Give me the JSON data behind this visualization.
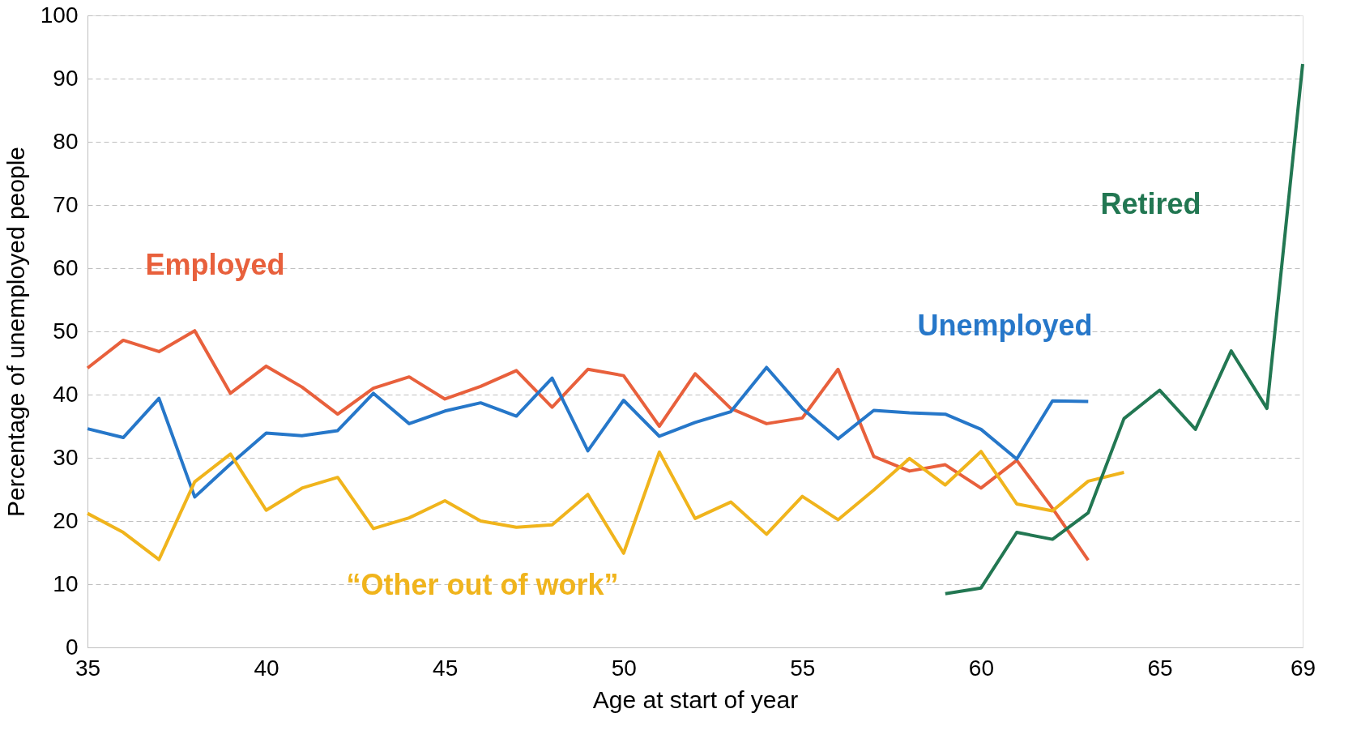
{
  "chart_data": {
    "type": "line",
    "xlabel": "Age at start of year",
    "ylabel": "Percentage of unemployed people",
    "xlim": [
      35,
      69
    ],
    "xticks": [
      35,
      40,
      45,
      50,
      55,
      60,
      65,
      69
    ],
    "ylim": [
      0,
      100
    ],
    "yticks": [
      0,
      10,
      20,
      30,
      40,
      50,
      60,
      70,
      80,
      90,
      100
    ],
    "grid": "y",
    "marker": "none",
    "line_style": "solid",
    "series": [
      {
        "name": "Employed",
        "color": "#e8603c",
        "x": [
          35,
          36,
          37,
          38,
          39,
          40,
          41,
          42,
          43,
          44,
          45,
          46,
          47,
          48,
          49,
          50,
          51,
          52,
          53,
          54,
          55,
          56,
          57,
          58,
          59,
          60,
          61,
          62,
          63
        ],
        "values": [
          44.2,
          48.6,
          46.8,
          50.1,
          40.2,
          44.5,
          41.2,
          36.9,
          41.0,
          42.8,
          39.3,
          41.3,
          43.8,
          38.0,
          44.0,
          43.0,
          35.0,
          43.3,
          37.8,
          35.4,
          36.3,
          44.0,
          30.2,
          27.9,
          28.9,
          25.2,
          29.6,
          22.0,
          13.8
        ]
      },
      {
        "name": "Unemployed",
        "color": "#2677c9",
        "x": [
          35,
          36,
          37,
          38,
          39,
          40,
          41,
          42,
          43,
          44,
          45,
          46,
          47,
          48,
          49,
          50,
          51,
          52,
          53,
          54,
          55,
          56,
          57,
          58,
          59,
          60,
          61,
          62,
          63
        ],
        "values": [
          34.6,
          33.2,
          39.4,
          23.8,
          29.0,
          33.9,
          33.5,
          34.3,
          40.2,
          35.4,
          37.4,
          38.7,
          36.6,
          42.6,
          31.1,
          39.1,
          33.4,
          35.6,
          37.3,
          44.3,
          37.8,
          33.0,
          37.5,
          37.1,
          36.9,
          34.5,
          29.8,
          39.0,
          38.9
        ]
      },
      {
        "name": "“Other out of work”",
        "color": "#f0b41c",
        "x": [
          35,
          36,
          37,
          38,
          39,
          40,
          41,
          42,
          43,
          44,
          45,
          46,
          47,
          48,
          49,
          50,
          51,
          52,
          53,
          54,
          55,
          56,
          57,
          58,
          59,
          60,
          61,
          62,
          63,
          64
        ],
        "values": [
          21.2,
          18.2,
          13.9,
          26.2,
          30.6,
          21.7,
          25.2,
          26.9,
          18.8,
          20.5,
          23.2,
          20.0,
          19.0,
          19.4,
          24.2,
          14.9,
          30.9,
          20.4,
          23.0,
          17.9,
          23.9,
          20.2,
          24.9,
          29.9,
          25.7,
          31.0,
          22.7,
          21.6,
          26.3,
          27.7
        ]
      },
      {
        "name": "Retired",
        "color": "#227752",
        "x": [
          59,
          60,
          61,
          62,
          63,
          64,
          65,
          66,
          67,
          68,
          69
        ],
        "values": [
          8.5,
          9.4,
          18.2,
          17.1,
          21.3,
          36.2,
          40.7,
          34.5,
          46.9,
          37.8,
          92.3
        ]
      }
    ]
  }
}
